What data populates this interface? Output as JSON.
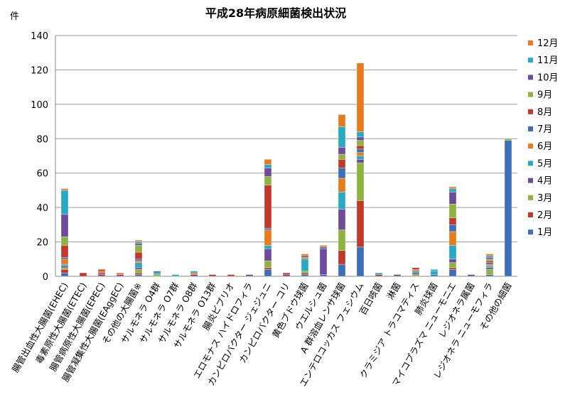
{
  "chart_data": {
    "type": "bar",
    "stacked": true,
    "title": "平成28年病原細菌検出状況",
    "ylabel": "件",
    "ylim": [
      0,
      140
    ],
    "yticks": [
      0,
      20,
      40,
      60,
      80,
      100,
      120,
      140
    ],
    "grid": true,
    "legend_position": "right",
    "categories": [
      "腸管出血性大腸菌(EHEC)",
      "毒素原性大腸菌(ETEC)",
      "腸管病原性大腸菌(EPEC)",
      "腸管凝集性大腸菌(EAggEC)",
      "その他の大腸菌※",
      "サルモネラ O4群",
      "サルモネラ O7群",
      "サルモネラ O8群",
      "サルモネラ O13群",
      "腸炎ビブリオ",
      "エロモナス ハイドロフィラ",
      "カンピロバクター ジェジュニ",
      "カンピロバクター コリ",
      "黄色ブドウ球菌",
      "ウエルシュ菌",
      "A 群溶血レンサ球菌",
      "エンテロコッカス フェシウム",
      "百日咳菌",
      "淋菌",
      "クラミジア トラコマティス",
      "肺炎球菌",
      "マイコプラズマ ニューモニエ",
      "レジオネラ属菌",
      "レジオネラ ニューモフィラ",
      "その他の細菌"
    ],
    "series": [
      {
        "name": "1月",
        "color": "#3d6fb6",
        "values": [
          2,
          0,
          0,
          0,
          1,
          0,
          0,
          0,
          0,
          0,
          0,
          4,
          0,
          1,
          1,
          7,
          17,
          0,
          0,
          0,
          1,
          4,
          0,
          1,
          79
        ]
      },
      {
        "name": "2月",
        "color": "#c0392b",
        "values": [
          2,
          2,
          1,
          0,
          1,
          0,
          0,
          0,
          1,
          1,
          0,
          1,
          0,
          1,
          0,
          8,
          27,
          1,
          0,
          0,
          0,
          1,
          0,
          0,
          0
        ]
      },
      {
        "name": "3月",
        "color": "#8db43e",
        "values": [
          1,
          0,
          0,
          0,
          2,
          1,
          0,
          0,
          0,
          0,
          0,
          4,
          0,
          1,
          0,
          12,
          22,
          0,
          0,
          1,
          0,
          3,
          0,
          3,
          1
        ]
      },
      {
        "name": "4月",
        "color": "#6f4a9a",
        "values": [
          1,
          0,
          1,
          1,
          1,
          0,
          0,
          1,
          0,
          0,
          1,
          7,
          1,
          0,
          15,
          12,
          2,
          0,
          1,
          1,
          0,
          2,
          1,
          1,
          0
        ]
      },
      {
        "name": "5月",
        "color": "#2aa8c4",
        "values": [
          1,
          0,
          0,
          0,
          3,
          1,
          1,
          0,
          0,
          0,
          0,
          2,
          0,
          7,
          0,
          10,
          2,
          1,
          0,
          1,
          2,
          8,
          0,
          1,
          0
        ]
      },
      {
        "name": "6月",
        "color": "#e87b1e",
        "values": [
          3,
          0,
          1,
          0,
          1,
          0,
          0,
          1,
          0,
          0,
          0,
          9,
          0,
          1,
          0,
          8,
          2,
          0,
          0,
          1,
          0,
          8,
          0,
          1,
          0
        ]
      },
      {
        "name": "7月",
        "color": "#3d6fb6",
        "values": [
          1,
          0,
          0,
          0,
          1,
          1,
          0,
          0,
          0,
          0,
          0,
          1,
          0,
          1,
          1,
          6,
          2,
          0,
          0,
          0,
          0,
          4,
          0,
          1,
          0
        ]
      },
      {
        "name": "8月",
        "color": "#c0392b",
        "values": [
          7,
          0,
          1,
          0,
          4,
          0,
          0,
          0,
          0,
          0,
          0,
          25,
          1,
          0,
          0,
          5,
          2,
          0,
          0,
          1,
          0,
          4,
          0,
          1,
          0
        ]
      },
      {
        "name": "9月",
        "color": "#8db43e",
        "values": [
          5,
          0,
          0,
          0,
          4,
          0,
          0,
          0,
          0,
          0,
          0,
          5,
          0,
          0,
          0,
          3,
          3,
          0,
          0,
          0,
          0,
          8,
          0,
          1,
          0
        ]
      },
      {
        "name": "10月",
        "color": "#6f4a9a",
        "values": [
          13,
          0,
          0,
          0,
          1,
          0,
          0,
          0,
          0,
          0,
          0,
          5,
          0,
          0,
          0,
          4,
          2,
          0,
          0,
          0,
          0,
          7,
          0,
          1,
          0
        ]
      },
      {
        "name": "11月",
        "color": "#2aa8c4",
        "values": [
          14,
          0,
          0,
          0,
          1,
          0,
          0,
          1,
          0,
          0,
          0,
          2,
          0,
          0,
          0,
          12,
          3,
          0,
          0,
          0,
          1,
          2,
          0,
          1,
          0
        ]
      },
      {
        "name": "12月",
        "color": "#e87b1e",
        "values": [
          1,
          0,
          0,
          1,
          1,
          0,
          0,
          0,
          0,
          0,
          0,
          3,
          0,
          1,
          1,
          7,
          40,
          0,
          0,
          0,
          0,
          1,
          0,
          1,
          0
        ]
      }
    ]
  }
}
